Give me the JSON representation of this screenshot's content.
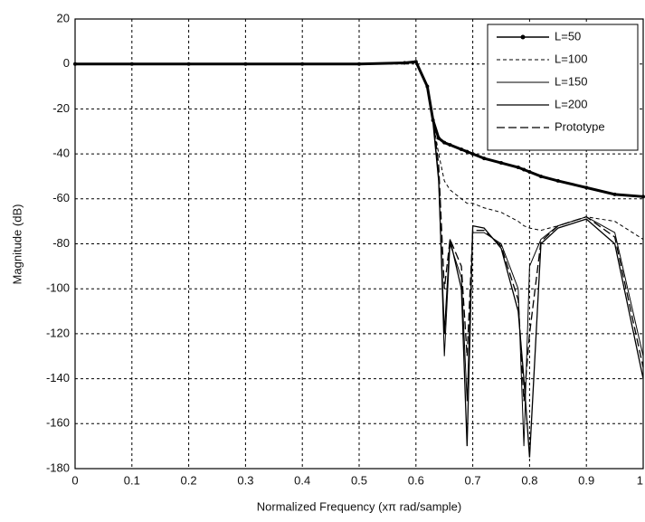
{
  "chart_data": {
    "type": "line",
    "ylabel": "Magnitude (dB)",
    "xlabel": "Normalized Frequency  (xπ rad/sample)",
    "x": [
      0,
      0.1,
      0.2,
      0.3,
      0.4,
      0.5,
      0.58,
      0.6,
      0.62,
      0.63,
      0.64,
      0.65,
      0.66,
      0.68,
      0.69,
      0.7,
      0.72,
      0.75,
      0.78,
      0.79,
      0.8,
      0.82,
      0.85,
      0.9,
      0.95,
      1
    ],
    "series": [
      {
        "name": "L=50",
        "color": "#000000",
        "style": "solid",
        "width": 3,
        "marker": "dot",
        "values": [
          0,
          0,
          0,
          0,
          0,
          0,
          0.5,
          1,
          -10,
          -25,
          -33,
          -35,
          -36,
          -38,
          -39,
          -40,
          -42,
          -44,
          -46,
          -47,
          -48,
          -50,
          -52,
          -55,
          -58,
          -59
        ]
      },
      {
        "name": "L=100",
        "color": "#000000",
        "style": "dashed",
        "width": 1,
        "values": [
          0,
          0,
          0,
          0,
          0,
          0,
          0.5,
          1,
          -10,
          -25,
          -40,
          -52,
          -56,
          -60,
          -62,
          -62,
          -64,
          -66,
          -70,
          -72,
          -73,
          -74,
          -72,
          -68,
          -70,
          -78
        ]
      },
      {
        "name": "L=150",
        "color": "#000000",
        "style": "solid",
        "width": 1,
        "values": [
          0,
          0,
          0,
          0,
          0,
          0,
          0.5,
          1,
          -10,
          -25,
          -50,
          -130,
          -80,
          -95,
          -150,
          -75,
          -75,
          -80,
          -100,
          -170,
          -90,
          -78,
          -72,
          -68,
          -75,
          -130
        ]
      },
      {
        "name": "L=200",
        "color": "#000000",
        "style": "solid",
        "width": 1.3,
        "values": [
          0,
          0,
          0,
          0,
          0,
          0,
          0.5,
          1,
          -10,
          -26,
          -52,
          -120,
          -78,
          -100,
          -170,
          -72,
          -73,
          -82,
          -110,
          -140,
          -175,
          -80,
          -73,
          -69,
          -80,
          -140
        ]
      },
      {
        "name": "Prototype",
        "color": "#000000",
        "style": "longdash",
        "width": 1.3,
        "values": [
          0,
          0,
          0,
          0,
          0,
          0,
          0.5,
          1,
          -10,
          -24,
          -45,
          -100,
          -78,
          -90,
          -130,
          -74,
          -74,
          -81,
          -105,
          -150,
          -120,
          -79,
          -72,
          -68,
          -77,
          -135
        ]
      }
    ],
    "xlim": [
      0,
      1
    ],
    "xticks": [
      0,
      0.1,
      0.2,
      0.3,
      0.4,
      0.5,
      0.6,
      0.7,
      0.8,
      0.9,
      1
    ],
    "ylim": [
      -180,
      20
    ],
    "yticks": [
      -180,
      -160,
      -140,
      -120,
      -100,
      -80,
      -60,
      -40,
      -20,
      0,
      20
    ],
    "grid": true,
    "legend": "upper right"
  }
}
